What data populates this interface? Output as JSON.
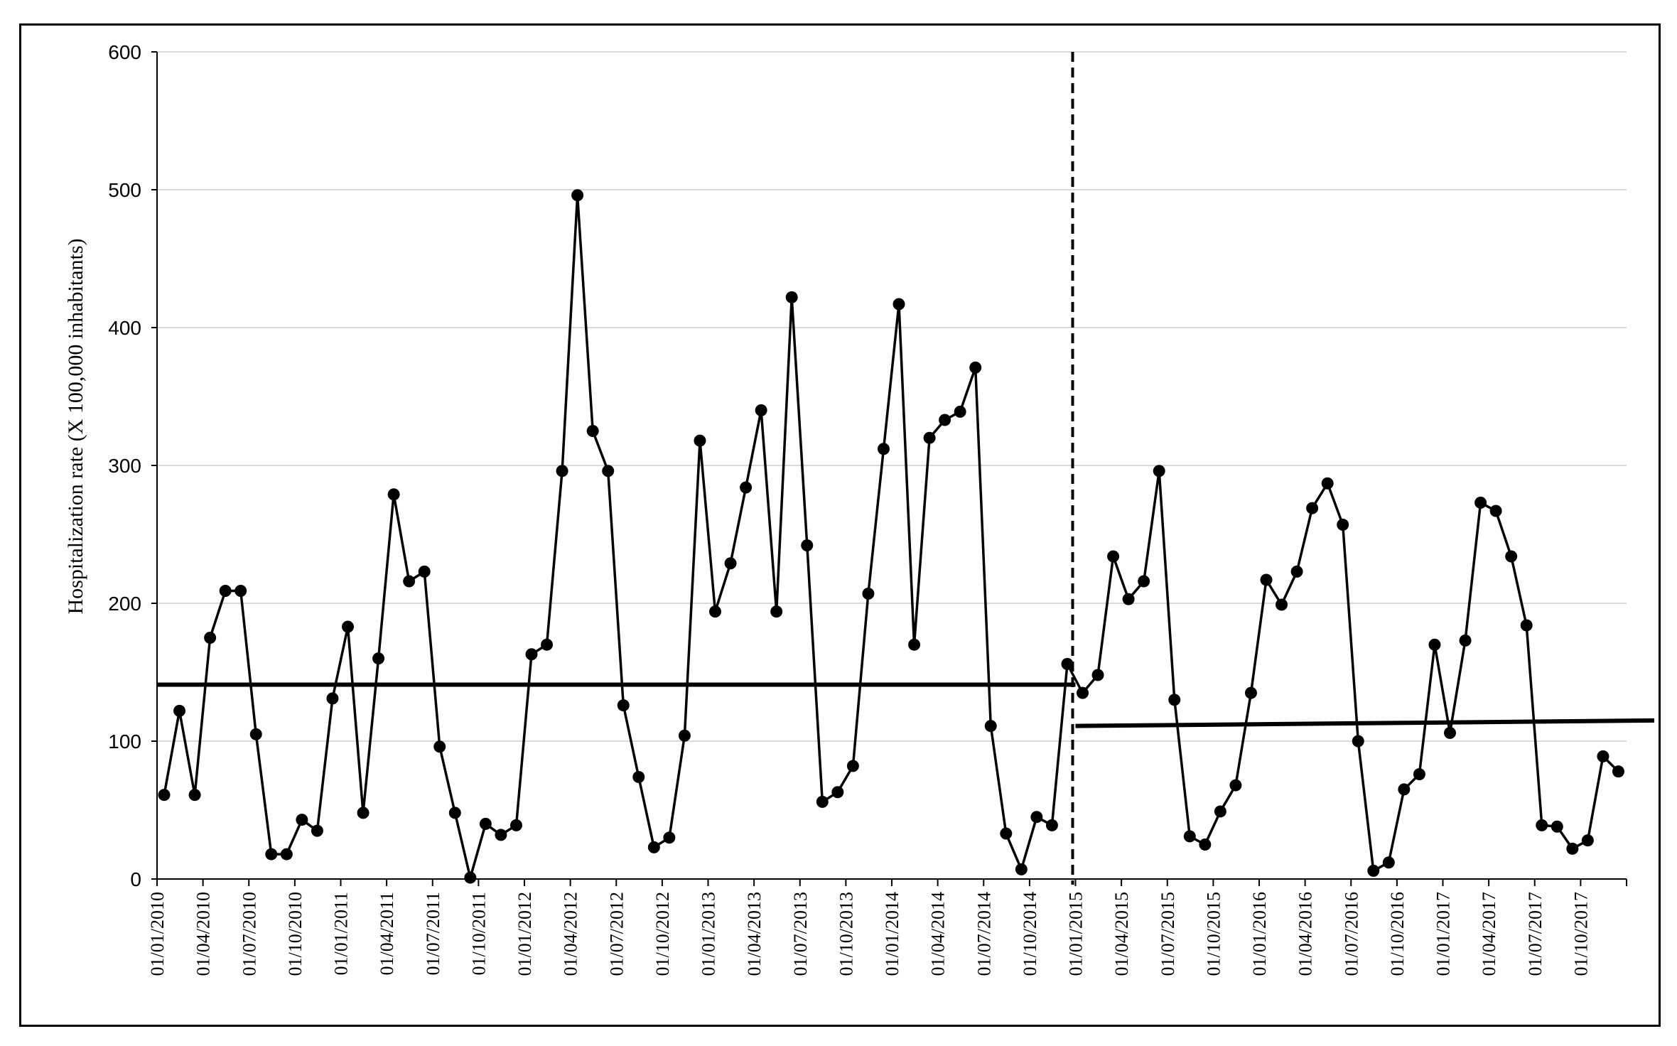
{
  "chart_data": {
    "type": "line",
    "title": "",
    "xlabel": "",
    "ylabel": "Hospitalization rate (X 100,000 inhabitants)",
    "ylim": [
      0,
      600
    ],
    "yticks": [
      "0",
      "100",
      "200",
      "300",
      "400",
      "500",
      "600"
    ],
    "grid": "horizontal",
    "legend": "none",
    "x_tick_labels": [
      "01/01/2010",
      "01/04/2010",
      "01/07/2010",
      "01/10/2010",
      "01/01/2011",
      "01/04/2011",
      "01/07/2011",
      "01/10/2011",
      "01/01/2012",
      "01/04/2012",
      "01/07/2012",
      "01/10/2012",
      "01/01/2013",
      "01/04/2013",
      "01/07/2013",
      "01/10/2013",
      "01/01/2014",
      "01/04/2014",
      "01/07/2014",
      "01/10/2014",
      "01/01/2015",
      "01/04/2015",
      "01/07/2015",
      "01/10/2015",
      "01/01/2016",
      "01/04/2016",
      "01/07/2016",
      "01/10/2016",
      "01/01/2017",
      "01/04/2017",
      "01/07/2017",
      "01/10/2017"
    ],
    "series": [
      {
        "values": [
          61,
          122,
          61,
          175,
          209,
          209,
          105,
          18,
          18,
          43,
          35,
          131,
          183,
          48,
          160,
          279,
          216,
          223,
          96,
          48,
          1,
          40,
          32,
          39,
          163,
          170,
          296,
          496,
          325,
          296,
          126,
          74,
          23,
          30,
          104,
          318,
          194,
          229,
          284,
          340,
          194,
          422,
          242,
          56,
          63,
          82,
          207,
          312,
          417,
          170,
          320,
          333,
          339,
          371,
          111,
          33,
          7,
          45,
          39,
          156,
          135,
          148,
          234,
          203,
          216,
          296,
          130,
          31,
          25,
          49,
          68,
          135,
          217,
          199,
          223,
          269,
          287,
          257,
          100,
          6,
          12,
          65,
          76,
          170,
          106,
          173,
          273,
          267,
          234,
          184,
          39,
          38,
          22,
          28,
          89,
          78
        ],
        "color": "#000000"
      }
    ],
    "mean_lines": [
      {
        "from": "01/01/2010",
        "to": "01/01/2015",
        "value": 141
      },
      {
        "from": "01/01/2015",
        "to": "end",
        "value_start": 111,
        "value_end": 115
      }
    ],
    "intervention_line": {
      "at": "01/01/2015",
      "style": "dashed"
    }
  }
}
